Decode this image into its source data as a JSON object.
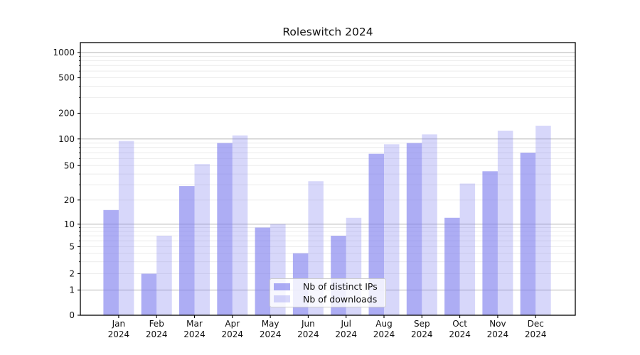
{
  "title": "Roleswitch 2024",
  "chart_data": {
    "type": "bar",
    "title": "Roleswitch 2024",
    "categories": [
      "Jan",
      "Feb",
      "Mar",
      "Apr",
      "May",
      "Jun",
      "Jul",
      "Aug",
      "Sep",
      "Oct",
      "Nov",
      "Dec"
    ],
    "category_year": "2024",
    "series": [
      {
        "name": "Nb of distinct IPs",
        "color": "rgba(123,123,237,0.62)",
        "values": [
          15,
          2,
          29,
          90,
          9,
          4,
          7,
          68,
          90,
          12,
          43,
          70
        ]
      },
      {
        "name": "Nb of downloads",
        "color": "rgba(123,123,237,0.30)",
        "values": [
          95,
          7,
          52,
          110,
          10,
          33,
          12,
          87,
          113,
          31,
          125,
          143
        ]
      }
    ],
    "yscale": "symlog",
    "ylim": [
      0,
      1300
    ],
    "ytick_labels": [
      "0",
      "1",
      "2",
      "5",
      "10",
      "20",
      "50",
      "100",
      "200",
      "500",
      "1000"
    ],
    "ytick_values": [
      0,
      1,
      2,
      5,
      10,
      20,
      50,
      100,
      200,
      500,
      1000
    ],
    "minor_grid_values": [
      3,
      4,
      6,
      7,
      8,
      9,
      30,
      40,
      60,
      70,
      80,
      90,
      300,
      400,
      600,
      700,
      800,
      900
    ],
    "grid": "on",
    "legend_position": "lower center",
    "colors": {
      "bar_base": "#7b7bed",
      "major_grid": "#b3b3b3",
      "minor_grid": "#ececec",
      "axis": "#000000",
      "text": "#111111"
    }
  }
}
